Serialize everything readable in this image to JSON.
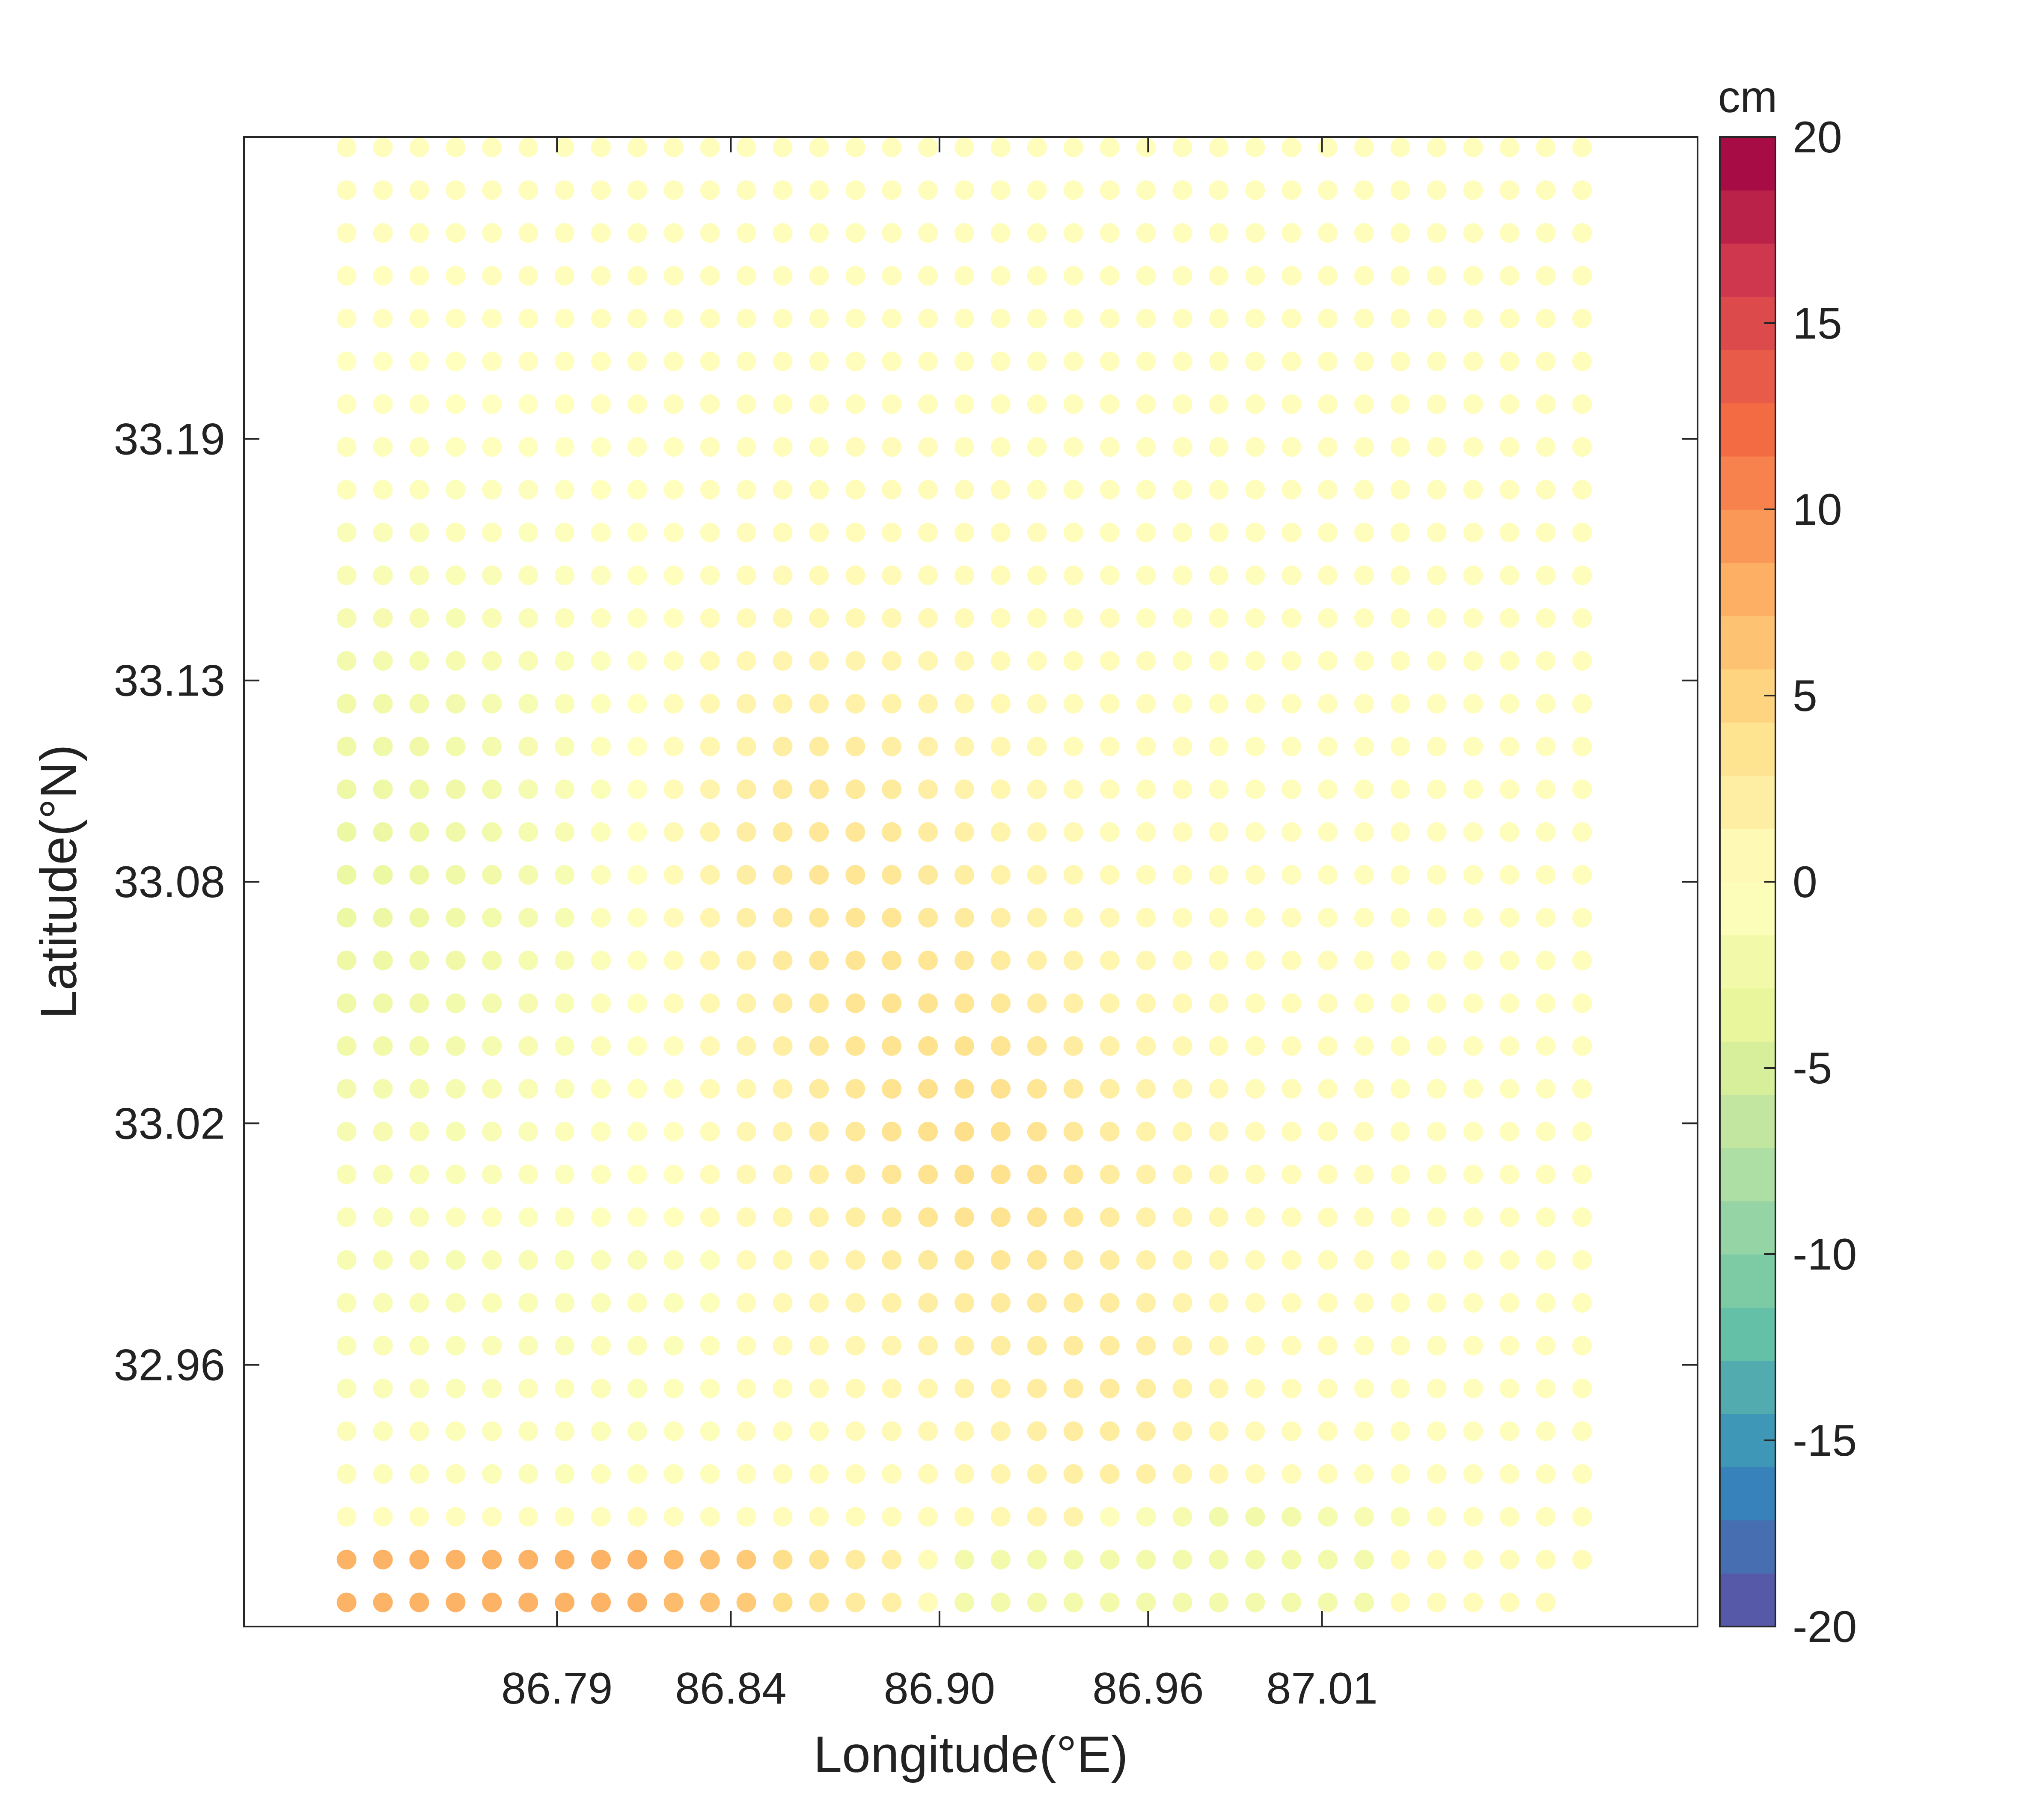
{
  "chart_data": {
    "type": "scatter",
    "title": "",
    "xlabel": "Longitude(°E)",
    "ylabel": "Latitude(°N)",
    "x_ticks": [
      86.79,
      86.84,
      86.9,
      86.96,
      87.01
    ],
    "x_tick_labels": [
      "86.79",
      "86.84",
      "86.90",
      "86.96",
      "87.01"
    ],
    "y_ticks": [
      32.96,
      33.02,
      33.08,
      33.13,
      33.19
    ],
    "y_tick_labels": [
      "32.96",
      "33.02",
      "33.08",
      "33.13",
      "33.19"
    ],
    "xlim": [
      86.7,
      87.118
    ],
    "ylim": [
      32.895,
      33.265
    ],
    "grid": false,
    "legend": "none",
    "colorbar": {
      "unit": "cm",
      "range": [
        -20,
        20
      ],
      "ticks": [
        20,
        15,
        10,
        5,
        0,
        -5,
        -10,
        -15,
        -20
      ],
      "tick_labels": [
        "20",
        "15",
        "10",
        "5",
        "0",
        "-5",
        "-10",
        "-15",
        "-20"
      ],
      "levels": 28,
      "colormap": "Spectral (reversed): purple-blue-teal-green-yellow-orange-red",
      "stops": [
        "#5e4fa2",
        "#3288bd",
        "#66c2a5",
        "#abdda4",
        "#e6f598",
        "#ffffbf",
        "#fee08b",
        "#fdae61",
        "#f46d43",
        "#d53e4f",
        "#9e0142"
      ]
    },
    "grid_points": {
      "lon_start": 86.7295,
      "lon_step": 0.01045,
      "lon_count": 35,
      "lat_start": 32.901,
      "lat_step": 0.01063,
      "lat_count": 35,
      "description": "Regular grid of deformation points; values in cm"
    }
  }
}
